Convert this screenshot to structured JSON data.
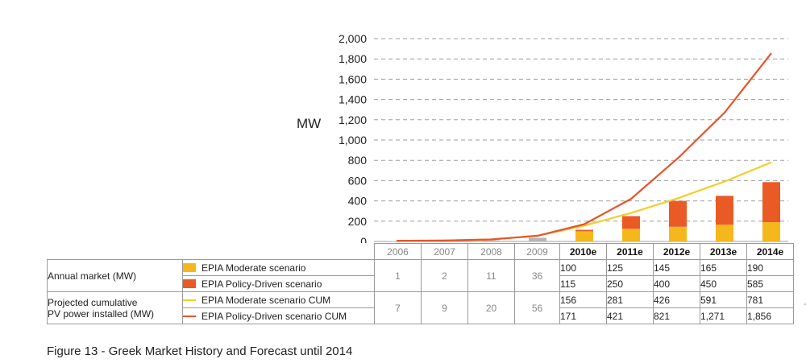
{
  "caption": "Figure 13 - Greek Market History and Forecast until 2014",
  "chart_data": {
    "type": "bar",
    "unit_label": "MW",
    "categories": [
      "2006",
      "2007",
      "2008",
      "2009",
      "2010e",
      "2011e",
      "2012e",
      "2013e",
      "2014e"
    ],
    "forecast_categories": [
      "2010e",
      "2011e",
      "2012e",
      "2013e",
      "2014e"
    ],
    "ylim": [
      0,
      2000
    ],
    "yticks": [
      "0",
      "200",
      "400",
      "600",
      "800",
      "1,000",
      "1,200",
      "1,400",
      "1,600",
      "1,800",
      "2,000"
    ],
    "ytick_values": [
      0,
      200,
      400,
      600,
      800,
      1000,
      1200,
      1400,
      1600,
      1800,
      2000
    ],
    "grid": true,
    "stacked": true,
    "series": [
      {
        "name": "EPIA Moderate scenario",
        "kind": "bar",
        "color": "#f5b81c",
        "values": [
          1,
          2,
          11,
          36,
          100,
          125,
          145,
          165,
          190
        ]
      },
      {
        "name": "EPIA Policy-Driven scenario",
        "kind": "bar",
        "color": "#ea5a24",
        "values": [
          1,
          2,
          11,
          36,
          115,
          250,
          400,
          450,
          585
        ]
      },
      {
        "name": "EPIA Moderate scenario CUM",
        "kind": "line",
        "color": "#f4cd2a",
        "values": [
          7,
          9,
          20,
          56,
          156,
          281,
          426,
          591,
          781
        ]
      },
      {
        "name": "EPIA Policy-Driven scenario CUM",
        "kind": "line",
        "color": "#e8542a",
        "values": [
          7,
          9,
          20,
          56,
          171,
          421,
          821,
          1271,
          1856
        ]
      }
    ],
    "historic_bar_color": "#b5b5b5"
  },
  "table": {
    "group1": "Annual market (MW)",
    "group2_line1": "Projected cumulative",
    "group2_line2": "PV power installed (MW)",
    "rows": {
      "mod": {
        "label": "EPIA Moderate scenario",
        "values": [
          "100",
          "125",
          "145",
          "165",
          "190"
        ]
      },
      "pol": {
        "label": "EPIA Policy-Driven scenario",
        "values": [
          "115",
          "250",
          "400",
          "450",
          "585"
        ]
      },
      "modcum": {
        "label": "EPIA Moderate scenario CUM",
        "values": [
          "156",
          "281",
          "426",
          "591",
          "781"
        ]
      },
      "polcum": {
        "label": "EPIA Policy-Driven scenario CUM",
        "values": [
          "171",
          "421",
          "821",
          "1,271",
          "1,856"
        ]
      }
    },
    "hist_annual": [
      "1",
      "2",
      "11",
      "36"
    ],
    "hist_cum": [
      "7",
      "9",
      "20",
      "56"
    ]
  },
  "colors": {
    "moderate": "#f5b81c",
    "policy": "#ea5a24",
    "moderate_line": "#f4cd2a",
    "policy_line": "#e8542a"
  },
  "edge_mark": "-"
}
